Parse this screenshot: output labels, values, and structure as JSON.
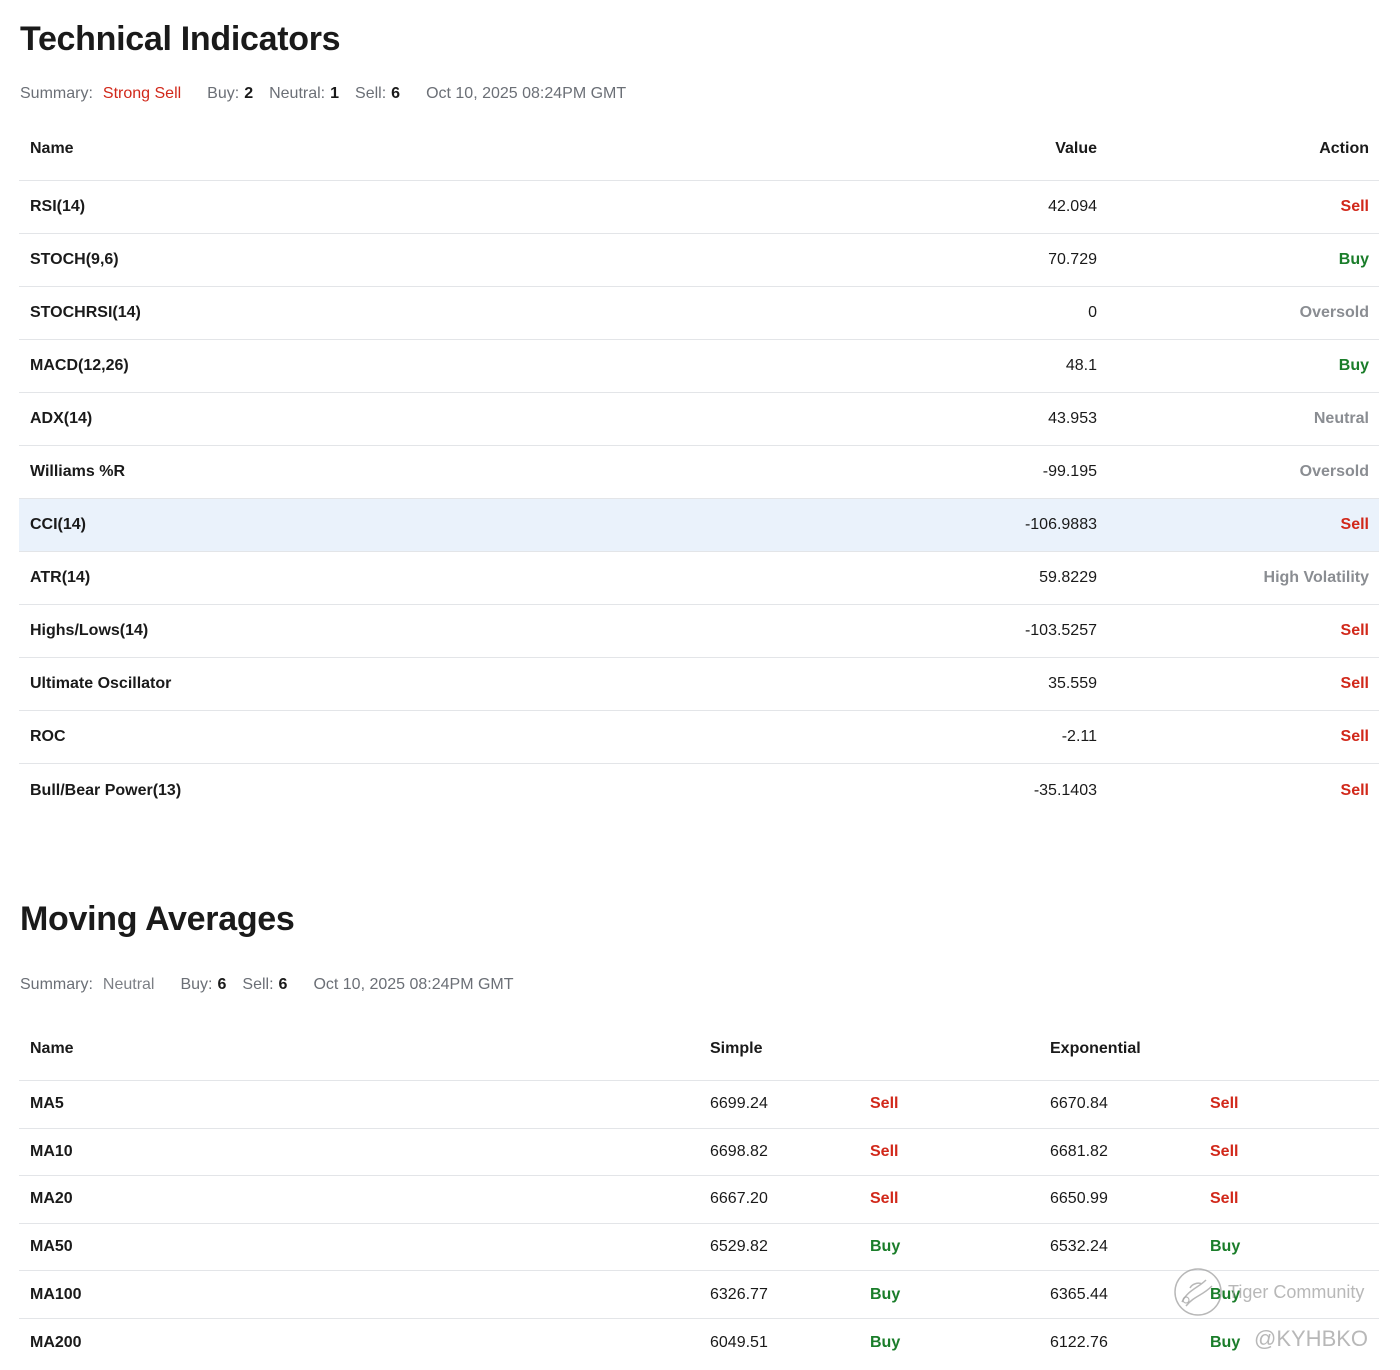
{
  "technical": {
    "title": "Technical Indicators",
    "summary": {
      "label": "Summary:",
      "value": "Strong Sell",
      "buy_label": "Buy:",
      "buy_count": "2",
      "neutral_label": "Neutral:",
      "neutral_count": "1",
      "sell_label": "Sell:",
      "sell_count": "6",
      "timestamp": "Oct 10, 2025 08:24PM GMT"
    },
    "columns": {
      "name": "Name",
      "value": "Value",
      "action": "Action"
    },
    "rows": [
      {
        "name": "RSI(14)",
        "value": "42.094",
        "action": "Sell",
        "tone": "sell"
      },
      {
        "name": "STOCH(9,6)",
        "value": "70.729",
        "action": "Buy",
        "tone": "buy"
      },
      {
        "name": "STOCHRSI(14)",
        "value": "0",
        "action": "Oversold",
        "tone": "neutral"
      },
      {
        "name": "MACD(12,26)",
        "value": "48.1",
        "action": "Buy",
        "tone": "buy"
      },
      {
        "name": "ADX(14)",
        "value": "43.953",
        "action": "Neutral",
        "tone": "neutral"
      },
      {
        "name": "Williams %R",
        "value": "-99.195",
        "action": "Oversold",
        "tone": "neutral"
      },
      {
        "name": "CCI(14)",
        "value": "-106.9883",
        "action": "Sell",
        "tone": "sell",
        "highlighted": true
      },
      {
        "name": "ATR(14)",
        "value": "59.8229",
        "action": "High Volatility",
        "tone": "neutral"
      },
      {
        "name": "Highs/Lows(14)",
        "value": "-103.5257",
        "action": "Sell",
        "tone": "sell"
      },
      {
        "name": "Ultimate Oscillator",
        "value": "35.559",
        "action": "Sell",
        "tone": "sell"
      },
      {
        "name": "ROC",
        "value": "-2.11",
        "action": "Sell",
        "tone": "sell"
      },
      {
        "name": "Bull/Bear Power(13)",
        "value": "-35.1403",
        "action": "Sell",
        "tone": "sell"
      }
    ]
  },
  "moving_averages": {
    "title": "Moving Averages",
    "summary": {
      "label": "Summary:",
      "value": "Neutral",
      "buy_label": "Buy:",
      "buy_count": "6",
      "sell_label": "Sell:",
      "sell_count": "6",
      "timestamp": "Oct 10, 2025 08:24PM GMT"
    },
    "columns": {
      "name": "Name",
      "simple": "Simple",
      "exponential": "Exponential"
    },
    "rows": [
      {
        "name": "MA5",
        "simple": "6699.24",
        "simple_action": "Sell",
        "simple_tone": "sell",
        "exp": "6670.84",
        "exp_action": "Sell",
        "exp_tone": "sell"
      },
      {
        "name": "MA10",
        "simple": "6698.82",
        "simple_action": "Sell",
        "simple_tone": "sell",
        "exp": "6681.82",
        "exp_action": "Sell",
        "exp_tone": "sell"
      },
      {
        "name": "MA20",
        "simple": "6667.20",
        "simple_action": "Sell",
        "simple_tone": "sell",
        "exp": "6650.99",
        "exp_action": "Sell",
        "exp_tone": "sell"
      },
      {
        "name": "MA50",
        "simple": "6529.82",
        "simple_action": "Buy",
        "simple_tone": "buy",
        "exp": "6532.24",
        "exp_action": "Buy",
        "exp_tone": "buy"
      },
      {
        "name": "MA100",
        "simple": "6326.77",
        "simple_action": "Buy",
        "simple_tone": "buy",
        "exp": "6365.44",
        "exp_action": "Buy",
        "exp_tone": "buy"
      },
      {
        "name": "MA200",
        "simple": "6049.51",
        "simple_action": "Buy",
        "simple_tone": "buy",
        "exp": "6122.76",
        "exp_action": "Buy",
        "exp_tone": "buy"
      }
    ]
  },
  "watermark": {
    "brand": "Tiger Community",
    "user": "@KYHBKO"
  },
  "colors": {
    "sell": "#d1281a",
    "buy": "#1a7d2a",
    "neutral": "#8a8d92",
    "highlight_row": "#eaf2fb"
  }
}
